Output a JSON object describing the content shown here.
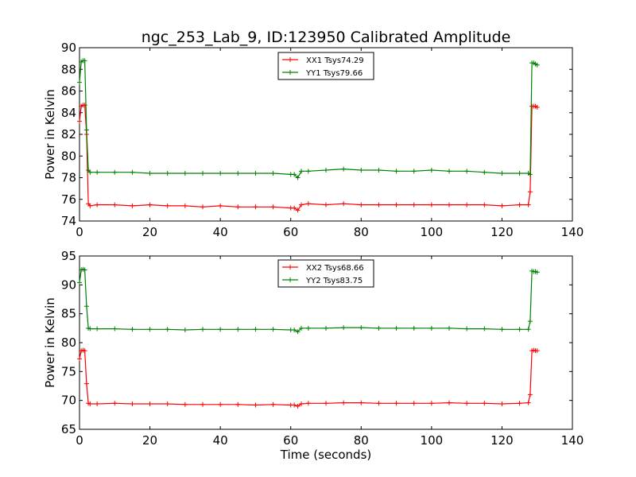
{
  "figure": {
    "title": "ngc_253_Lab_9, ID:123950 Calibrated Amplitude"
  },
  "chart_data": [
    {
      "type": "line",
      "title": "ngc_253_Lab_9, ID:123950 Calibrated Amplitude",
      "xlabel": "",
      "ylabel": "Power in Kelvin",
      "xlim": [
        0,
        140
      ],
      "ylim": [
        74,
        90
      ],
      "x_ticks": [
        0,
        20,
        40,
        60,
        80,
        100,
        120,
        140
      ],
      "y_ticks": [
        74,
        76,
        78,
        80,
        82,
        84,
        86,
        88,
        90
      ],
      "grid": false,
      "legend_position": "top-center",
      "marker": "+",
      "series": [
        {
          "name": "XX1 Tsys74.29",
          "color": "#ff0000",
          "x": [
            0,
            0.5,
            1,
            1.5,
            2,
            2.5,
            3,
            5,
            10,
            15,
            20,
            25,
            30,
            35,
            40,
            45,
            50,
            55,
            60,
            61,
            62,
            63,
            65,
            70,
            75,
            80,
            85,
            90,
            95,
            100,
            105,
            110,
            115,
            120,
            125,
            127.5,
            128,
            128.5,
            129,
            129.5,
            130
          ],
          "y": [
            83.2,
            84.6,
            84.7,
            84.7,
            82.0,
            75.6,
            75.4,
            75.5,
            75.5,
            75.4,
            75.5,
            75.4,
            75.4,
            75.3,
            75.4,
            75.3,
            75.3,
            75.3,
            75.2,
            75.2,
            75.0,
            75.5,
            75.6,
            75.5,
            75.6,
            75.5,
            75.5,
            75.5,
            75.5,
            75.5,
            75.5,
            75.5,
            75.5,
            75.4,
            75.5,
            75.5,
            76.7,
            84.6,
            84.6,
            84.6,
            84.5
          ]
        },
        {
          "name": "YY1 Tsys79.66",
          "color": "#008000",
          "x": [
            0,
            0.5,
            1,
            1.5,
            2,
            2.5,
            3,
            5,
            10,
            15,
            20,
            25,
            30,
            35,
            40,
            45,
            50,
            55,
            60,
            61,
            62,
            63,
            65,
            70,
            75,
            80,
            85,
            90,
            95,
            100,
            105,
            110,
            115,
            120,
            125,
            127.5,
            128,
            128.5,
            129,
            129.5,
            130
          ],
          "y": [
            86.8,
            88.7,
            88.8,
            88.8,
            82.4,
            78.7,
            78.5,
            78.5,
            78.5,
            78.5,
            78.4,
            78.4,
            78.4,
            78.4,
            78.4,
            78.4,
            78.4,
            78.4,
            78.3,
            78.3,
            78.0,
            78.6,
            78.6,
            78.7,
            78.8,
            78.7,
            78.7,
            78.6,
            78.6,
            78.7,
            78.6,
            78.6,
            78.5,
            78.4,
            78.4,
            78.4,
            78.3,
            88.6,
            88.6,
            88.5,
            88.4
          ]
        }
      ]
    },
    {
      "type": "line",
      "title": "",
      "xlabel": "Time (seconds)",
      "ylabel": "Power in Kelvin",
      "xlim": [
        0,
        140
      ],
      "ylim": [
        65,
        95
      ],
      "x_ticks": [
        0,
        20,
        40,
        60,
        80,
        100,
        120,
        140
      ],
      "y_ticks": [
        65,
        70,
        75,
        80,
        85,
        90,
        95
      ],
      "grid": false,
      "legend_position": "top-center",
      "marker": "+",
      "series": [
        {
          "name": "XX2 Tsys68.66",
          "color": "#ff0000",
          "x": [
            0,
            0.5,
            1,
            1.5,
            2,
            2.5,
            3,
            5,
            10,
            15,
            20,
            25,
            30,
            35,
            40,
            45,
            50,
            55,
            60,
            61,
            62,
            63,
            65,
            70,
            75,
            80,
            85,
            90,
            95,
            100,
            105,
            110,
            115,
            120,
            125,
            127.5,
            128,
            128.5,
            129,
            129.5,
            130
          ],
          "y": [
            77.2,
            78.6,
            78.7,
            78.6,
            72.9,
            69.5,
            69.4,
            69.4,
            69.5,
            69.4,
            69.4,
            69.4,
            69.3,
            69.3,
            69.3,
            69.3,
            69.2,
            69.3,
            69.2,
            69.2,
            69.0,
            69.4,
            69.5,
            69.5,
            69.6,
            69.6,
            69.5,
            69.5,
            69.5,
            69.5,
            69.6,
            69.5,
            69.5,
            69.4,
            69.5,
            69.6,
            71.0,
            78.6,
            78.7,
            78.6,
            78.6
          ]
        },
        {
          "name": "YY2 Tsys83.75",
          "color": "#008000",
          "x": [
            0,
            0.5,
            1,
            1.5,
            2,
            2.5,
            3,
            5,
            10,
            15,
            20,
            25,
            30,
            35,
            40,
            45,
            50,
            55,
            60,
            61,
            62,
            63,
            65,
            70,
            75,
            80,
            85,
            90,
            95,
            100,
            105,
            110,
            115,
            120,
            125,
            127.5,
            128,
            128.5,
            129,
            129.5,
            130
          ],
          "y": [
            90.4,
            92.6,
            92.7,
            92.6,
            86.3,
            82.5,
            82.4,
            82.4,
            82.4,
            82.3,
            82.3,
            82.3,
            82.2,
            82.3,
            82.3,
            82.3,
            82.3,
            82.3,
            82.2,
            82.2,
            81.9,
            82.5,
            82.5,
            82.5,
            82.6,
            82.6,
            82.5,
            82.5,
            82.5,
            82.5,
            82.5,
            82.4,
            82.4,
            82.3,
            82.3,
            82.3,
            83.7,
            92.4,
            92.3,
            92.3,
            92.2
          ]
        }
      ]
    }
  ]
}
